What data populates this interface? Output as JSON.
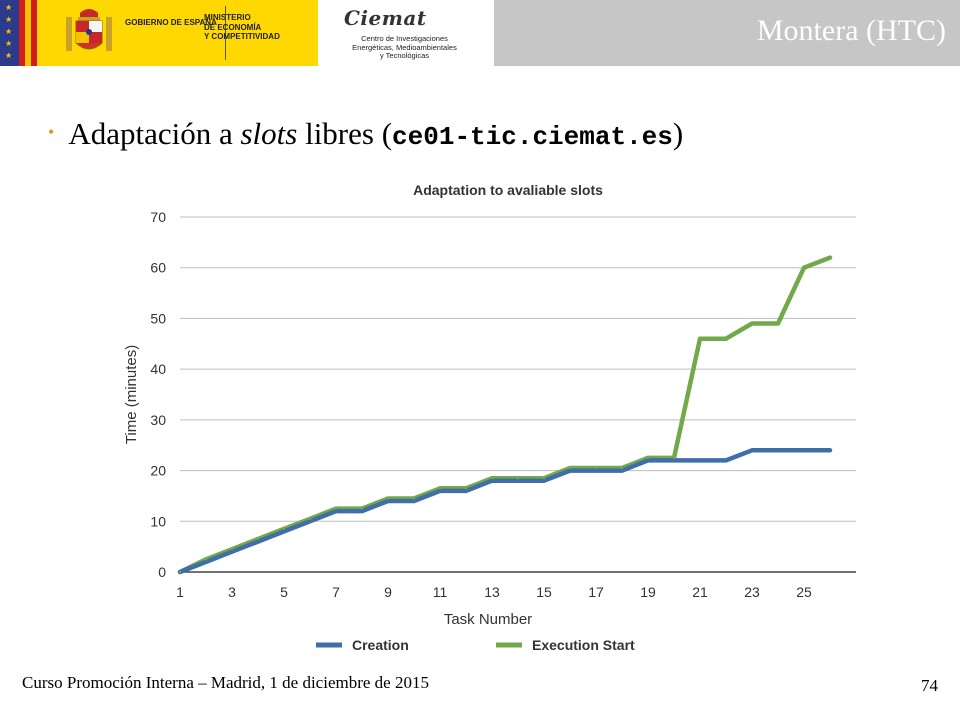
{
  "header": {
    "gov_line1": "Gobierno de España",
    "ministry_line1": "Ministerio",
    "ministry_line2": "de Economía",
    "ministry_line3": "y Competitividad",
    "ciemat_logo": "Ciemat",
    "ciemat_sub1": "Centro de Investigaciones",
    "ciemat_sub2": "Energéticas, Medioambientales",
    "ciemat_sub3": "y Tecnológicas",
    "section_title": "Montera (HTC)"
  },
  "bullet": {
    "text_before": "Adaptación a ",
    "text_italic": "slots",
    "text_after": " libres (",
    "host": "ce01-tic.ciemat.es",
    "close": ")"
  },
  "chart_data": {
    "type": "line",
    "title": "Adaptation to avaliable slots",
    "xlabel": "Task Number",
    "ylabel": "Time (minutes)",
    "ylim": [
      0,
      70
    ],
    "yticks": [
      "0",
      "10",
      "20",
      "30",
      "40",
      "50",
      "60",
      "70"
    ],
    "xlim": [
      1,
      27
    ],
    "xticks": [
      "1",
      "3",
      "5",
      "7",
      "9",
      "11",
      "13",
      "15",
      "17",
      "19",
      "21",
      "23",
      "25"
    ],
    "grid": true,
    "legend_position": "bottom",
    "series": [
      {
        "name": "Creation",
        "color": "#3f6fa6",
        "points": [
          [
            1,
            0
          ],
          [
            2,
            2
          ],
          [
            3,
            4
          ],
          [
            4,
            6
          ],
          [
            5,
            8
          ],
          [
            6,
            10
          ],
          [
            7,
            12
          ],
          [
            8,
            12
          ],
          [
            9,
            14
          ],
          [
            10,
            14
          ],
          [
            11,
            16
          ],
          [
            12,
            16
          ],
          [
            13,
            18
          ],
          [
            14,
            18
          ],
          [
            15,
            18
          ],
          [
            16,
            20
          ],
          [
            17,
            20
          ],
          [
            18,
            20
          ],
          [
            19,
            22
          ],
          [
            20,
            22
          ],
          [
            21,
            22
          ],
          [
            22,
            22
          ],
          [
            23,
            24
          ],
          [
            24,
            24
          ],
          [
            25,
            24
          ],
          [
            26,
            24
          ]
        ]
      },
      {
        "name": "Execution Start",
        "color": "#72a94a",
        "points": [
          [
            1,
            0
          ],
          [
            2,
            2.5
          ],
          [
            3,
            4.5
          ],
          [
            4,
            6.5
          ],
          [
            5,
            8.5
          ],
          [
            6,
            10.5
          ],
          [
            7,
            12.5
          ],
          [
            8,
            12.5
          ],
          [
            9,
            14.5
          ],
          [
            10,
            14.5
          ],
          [
            11,
            16.5
          ],
          [
            12,
            16.5
          ],
          [
            13,
            18.5
          ],
          [
            14,
            18.5
          ],
          [
            15,
            18.5
          ],
          [
            16,
            20.5
          ],
          [
            17,
            20.5
          ],
          [
            18,
            20.5
          ],
          [
            19,
            22.5
          ],
          [
            20,
            22.5
          ],
          [
            21,
            46
          ],
          [
            22,
            46
          ],
          [
            23,
            49
          ],
          [
            24,
            49
          ],
          [
            25,
            60
          ],
          [
            26,
            62
          ]
        ]
      }
    ]
  },
  "footer": {
    "text": "Curso Promoción Interna – Madrid, 1 de diciembre de 2015",
    "page_number": "74"
  }
}
